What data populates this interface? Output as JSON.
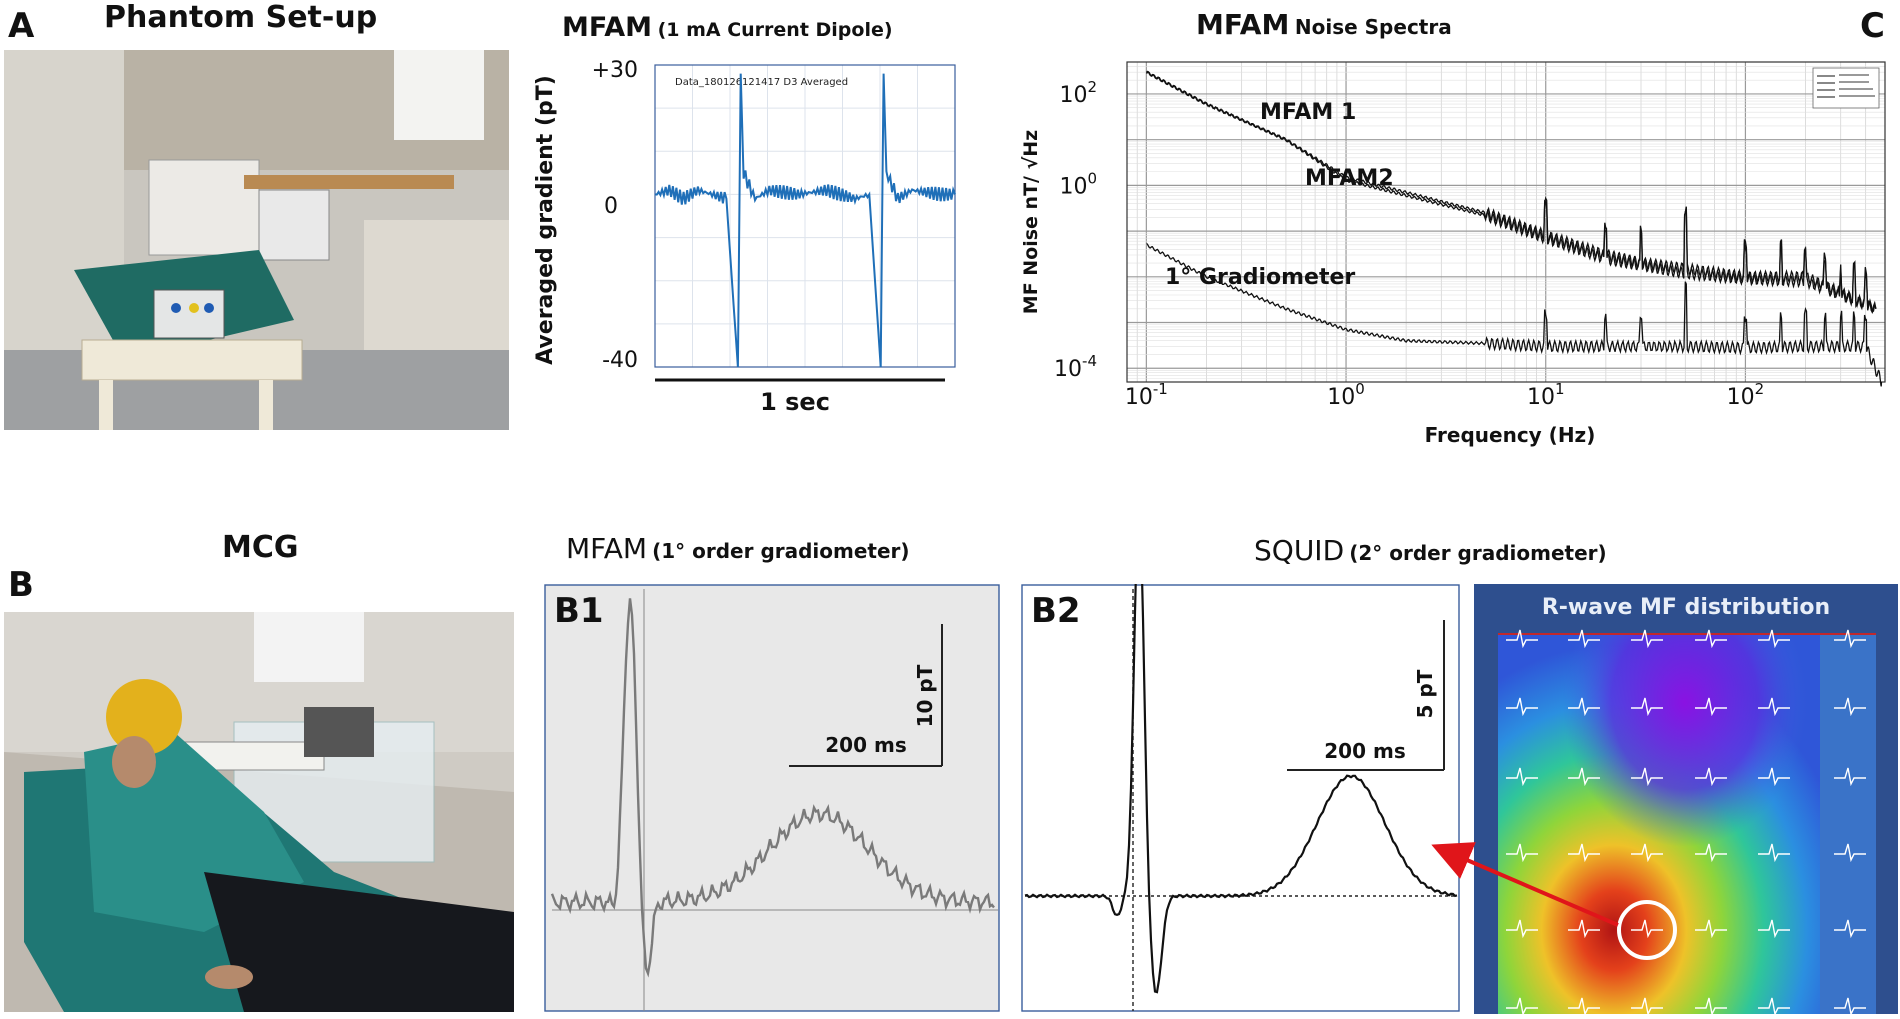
{
  "panels": {
    "A": {
      "letter": "A",
      "title": "Phantom Set-up"
    },
    "B": {
      "letter": "B",
      "title": "MCG"
    },
    "C": {
      "letter": "C"
    }
  },
  "dipole": {
    "title_main": "MFAM",
    "title_sub": "(1 mA Current Dipole)",
    "plot_label": "Data_180126121417 D3 Averaged",
    "ylabel": "Averaged gradient (pT)",
    "ytick_top": "+30",
    "ytick_mid": "0",
    "ytick_bottom": "-40",
    "time_bar_label": "1 sec"
  },
  "spectra": {
    "title_main": "MFAM",
    "title_sub": "Noise Spectra",
    "ylabel": "MF Noise nT/ √Hz",
    "xlabel": "Frequency (Hz)",
    "curve_labels": {
      "mfam1": "MFAM 1",
      "mfam2": "MFAM2",
      "gradiometer": "1° Gradiometer"
    }
  },
  "b1": {
    "label": "B1",
    "title_main": "MFAM",
    "title_sub": "(1° order gradiometer)",
    "scale_y": "10 pT",
    "scale_x": "200 ms"
  },
  "b2": {
    "label": "B2",
    "title_main": "SQUID",
    "title_sub": "(2° order gradiometer)",
    "scale_y": "5 pT",
    "scale_x": "200 ms"
  },
  "map": {
    "title": "R-wave MF distribution"
  },
  "chart_data": [
    {
      "type": "line",
      "title": "MFAM (1 mA Current Dipole)",
      "ylabel": "Averaged gradient (pT)",
      "xlabel": "1 sec",
      "ylim": [
        -40,
        30
      ],
      "yticks": [
        "+30",
        "0",
        "-40"
      ],
      "x": [
        0.0,
        0.05,
        0.1,
        0.15,
        0.2,
        0.25,
        0.29,
        0.3,
        0.31,
        0.33,
        0.35,
        0.4,
        0.5,
        0.6,
        0.7,
        0.75,
        0.79,
        0.8,
        0.81,
        0.83,
        0.85,
        0.9,
        1.0,
        1.05
      ],
      "values": [
        0,
        1,
        -1,
        1,
        0,
        -1,
        -40,
        28,
        5,
        2,
        -1,
        1,
        0,
        1,
        -1,
        0,
        -40,
        28,
        5,
        2,
        -1,
        1,
        0,
        0
      ]
    },
    {
      "type": "line",
      "title": "MFAM Noise Spectra",
      "xlabel": "Frequency (Hz)",
      "ylabel": "MF Noise nT/ √Hz",
      "x_scale": "log",
      "y_scale": "log",
      "xlim": [
        0.08,
        500
      ],
      "ylim": [
        5e-05,
        500
      ],
      "x_ticks": [
        0.1,
        1,
        10,
        100
      ],
      "y_ticks": [
        0.0001,
        1,
        100
      ],
      "grid": true,
      "legend": "top-right",
      "series": [
        {
          "name": "MFAM 1",
          "x": [
            0.1,
            0.2,
            0.5,
            1,
            2,
            5,
            10,
            20,
            30,
            50,
            100,
            200,
            450
          ],
          "values": [
            300,
            60,
            10,
            1.5,
            0.7,
            0.25,
            0.08,
            0.03,
            0.02,
            0.015,
            0.01,
            0.01,
            0.002
          ]
        },
        {
          "name": "MFAM2",
          "x": [
            0.1,
            0.2,
            0.5,
            1,
            2,
            5,
            10,
            20,
            30,
            50,
            100,
            200,
            450
          ],
          "values": [
            300,
            60,
            10,
            1.3,
            0.6,
            0.22,
            0.07,
            0.025,
            0.018,
            0.012,
            0.009,
            0.008,
            0.002
          ]
        },
        {
          "name": "1° Gradiometer",
          "x": [
            0.1,
            0.2,
            0.5,
            1,
            2,
            5,
            10,
            20,
            50,
            100,
            200,
            400,
            480
          ],
          "values": [
            0.05,
            0.01,
            0.002,
            0.0007,
            0.0004,
            0.00035,
            0.0003,
            0.0003,
            0.0003,
            0.00028,
            0.0003,
            0.0003,
            5e-05
          ]
        }
      ]
    }
  ]
}
